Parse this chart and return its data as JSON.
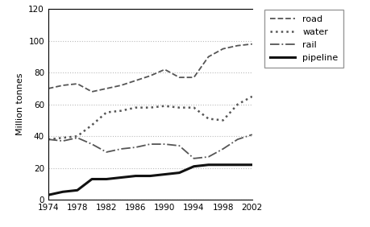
{
  "years": [
    1974,
    1976,
    1978,
    1980,
    1982,
    1984,
    1986,
    1988,
    1990,
    1992,
    1994,
    1996,
    1998,
    2000,
    2002
  ],
  "road": [
    70,
    72,
    73,
    68,
    70,
    72,
    75,
    78,
    82,
    77,
    77,
    90,
    95,
    97,
    98
  ],
  "water": [
    38,
    39,
    40,
    47,
    55,
    56,
    58,
    58,
    59,
    58,
    58,
    51,
    50,
    60,
    65
  ],
  "rail": [
    38,
    37,
    39,
    35,
    30,
    32,
    33,
    35,
    35,
    34,
    26,
    27,
    32,
    38,
    41
  ],
  "pipeline": [
    3,
    5,
    6,
    13,
    13,
    14,
    15,
    15,
    16,
    17,
    21,
    22,
    22,
    22,
    22
  ],
  "ylabel": "Million tonnes",
  "ylim": [
    0,
    120
  ],
  "xlim": [
    1974,
    2002
  ],
  "yticks": [
    0,
    20,
    40,
    60,
    80,
    100,
    120
  ],
  "xticks": [
    1974,
    1978,
    1982,
    1986,
    1990,
    1994,
    1998,
    2002
  ],
  "colors": {
    "road": "#555555",
    "water": "#555555",
    "rail": "#555555",
    "pipeline": "#111111"
  },
  "linestyles": {
    "road": "--",
    "water": ":",
    "rail": "-.",
    "pipeline": "-"
  },
  "linewidths": {
    "road": 1.3,
    "water": 1.8,
    "rail": 1.3,
    "pipeline": 2.2
  },
  "background_color": "#ffffff",
  "grid_color": "#bbbbbb"
}
